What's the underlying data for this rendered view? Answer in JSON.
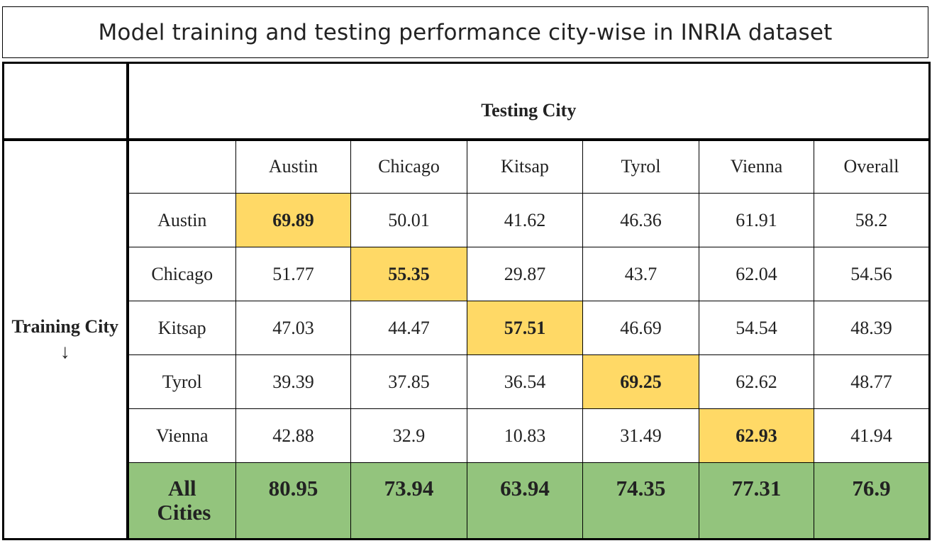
{
  "title": "Model training and testing performance city-wise in INRIA dataset",
  "testing_header": "Testing City",
  "training_header": "Training City",
  "training_arrow": "↓",
  "columns": [
    "Austin",
    "Chicago",
    "Kitsap",
    "Tyrol",
    "Vienna",
    "Overall"
  ],
  "rows": [
    {
      "label": "Austin",
      "cells": [
        "69.89",
        "50.01",
        "41.62",
        "46.36",
        "61.91",
        "58.2"
      ]
    },
    {
      "label": "Chicago",
      "cells": [
        "51.77",
        "55.35",
        "29.87",
        "43.7",
        "62.04",
        "54.56"
      ]
    },
    {
      "label": "Kitsap",
      "cells": [
        "47.03",
        "44.47",
        "57.51",
        "46.69",
        "54.54",
        "48.39"
      ]
    },
    {
      "label": "Tyrol",
      "cells": [
        "39.39",
        "37.85",
        "36.54",
        "69.25",
        "62.62",
        "48.77"
      ]
    },
    {
      "label": "Vienna",
      "cells": [
        "42.88",
        "32.9",
        "10.83",
        "31.49",
        "62.93",
        "41.94"
      ]
    }
  ],
  "all_row": {
    "label": "All Cities",
    "cells": [
      "80.95",
      "73.94",
      "63.94",
      "74.35",
      "77.31",
      "76.9"
    ]
  },
  "colors": {
    "diagonal_highlight": "#ffd966",
    "all_cities_row": "#93c47d"
  },
  "chart_data": {
    "type": "table",
    "title": "Model training and testing performance city-wise in INRIA dataset",
    "column_header": "Testing City",
    "row_header": "Training City",
    "columns": [
      "Austin",
      "Chicago",
      "Kitsap",
      "Tyrol",
      "Vienna",
      "Overall"
    ],
    "row_labels": [
      "Austin",
      "Chicago",
      "Kitsap",
      "Tyrol",
      "Vienna",
      "All Cities"
    ],
    "values": [
      [
        69.89,
        50.01,
        41.62,
        46.36,
        61.91,
        58.2
      ],
      [
        51.77,
        55.35,
        29.87,
        43.7,
        62.04,
        54.56
      ],
      [
        47.03,
        44.47,
        57.51,
        46.69,
        54.54,
        48.39
      ],
      [
        39.39,
        37.85,
        36.54,
        69.25,
        62.62,
        48.77
      ],
      [
        42.88,
        32.9,
        10.83,
        31.49,
        62.93,
        41.94
      ],
      [
        80.95,
        73.94,
        63.94,
        74.35,
        77.31,
        76.9
      ]
    ]
  }
}
